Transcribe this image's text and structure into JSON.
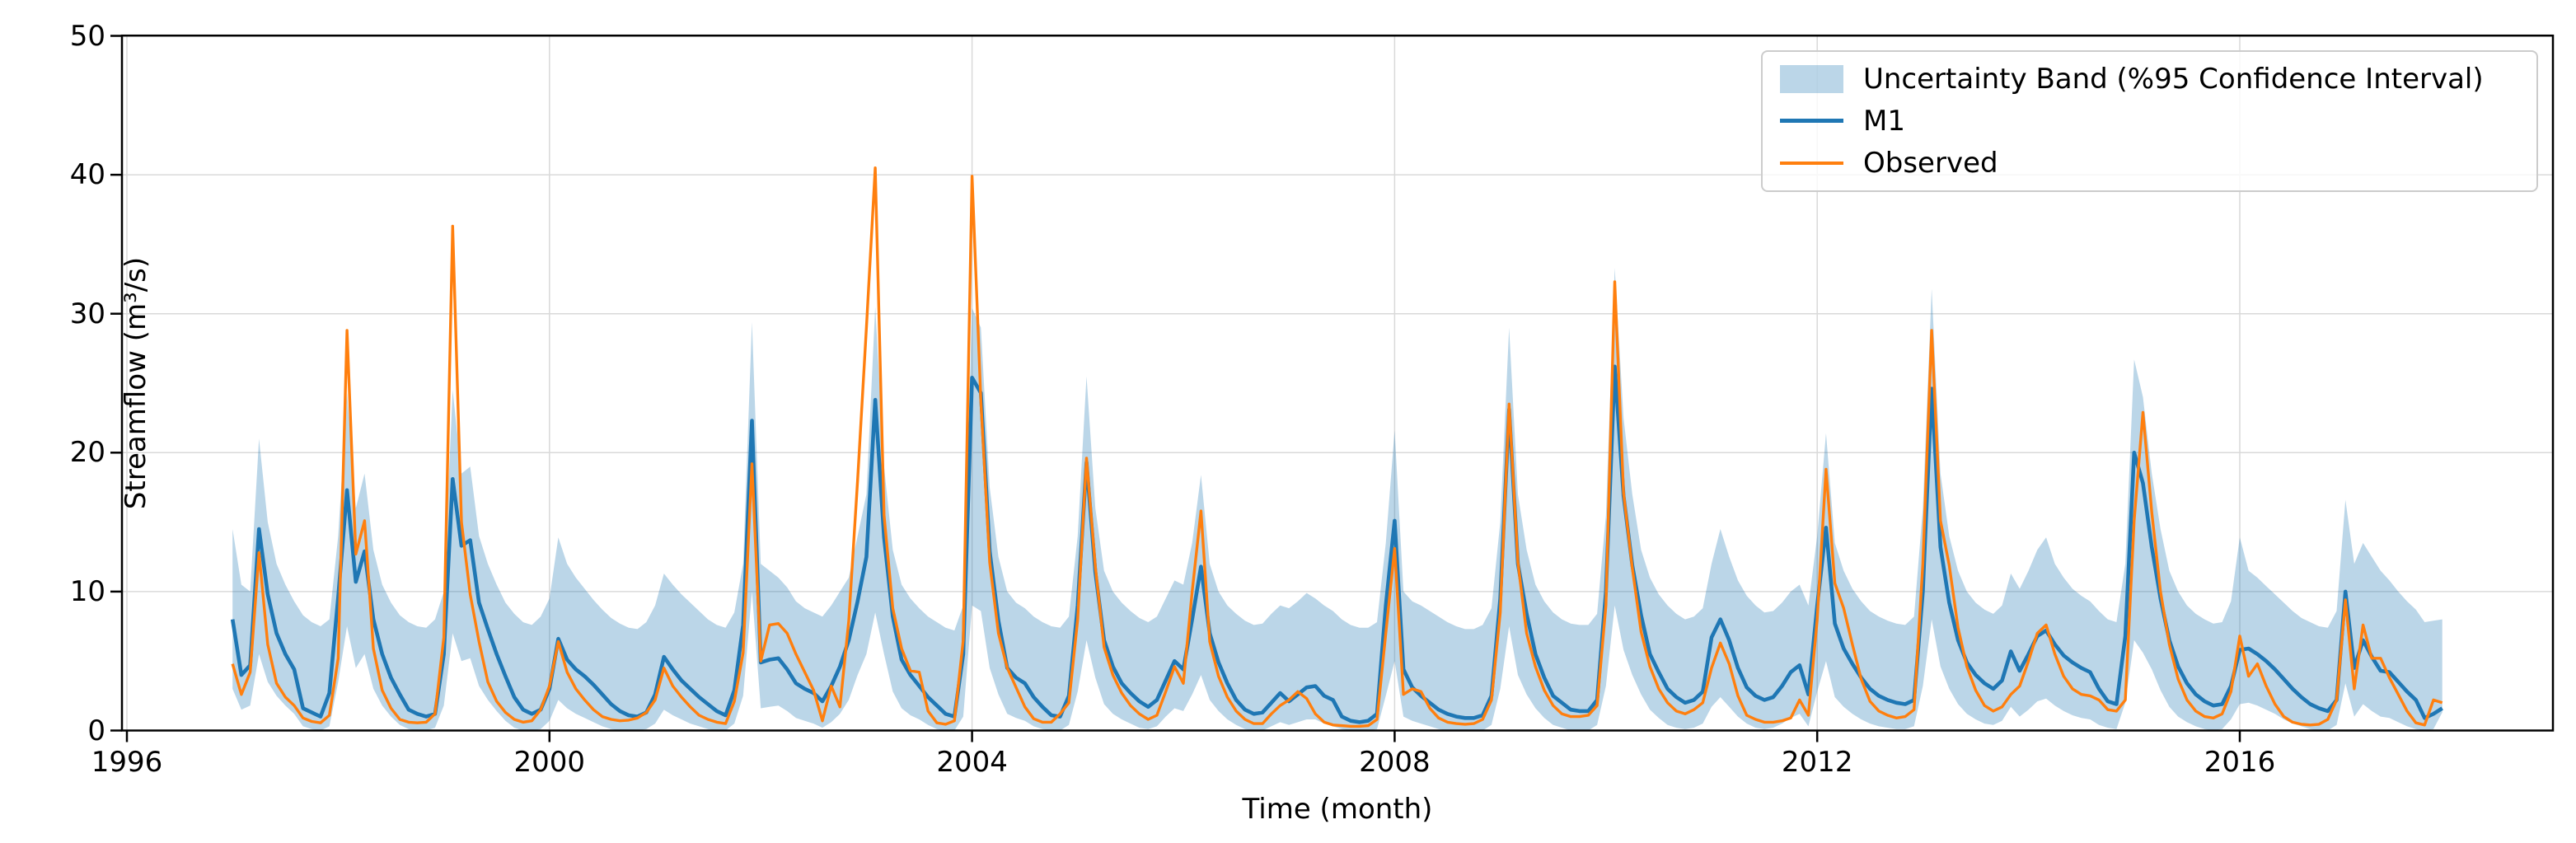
{
  "chart_data": {
    "type": "line",
    "title": "",
    "xlabel": "Time (month)",
    "ylabel": "Streamflow (m³/s)",
    "x_start": {
      "year": 1997,
      "month": 1
    },
    "x_step_months": 1,
    "n_points": 252,
    "xlim": [
      1995.95,
      2018.96
    ],
    "ylim": [
      0,
      50
    ],
    "xticks": [
      1996,
      2000,
      2004,
      2008,
      2012,
      2016
    ],
    "yticks": [
      0,
      10,
      20,
      30,
      40,
      50
    ],
    "grid": true,
    "legend_position": "upper right",
    "colors": {
      "m1": "#1f77b4",
      "observed": "#ff7f0e",
      "band": "#1f77b4",
      "band_opacity": 0.3
    },
    "series": [
      {
        "name": "Uncertainty Band (%95 Confidence Interval)",
        "type": "band",
        "upper": [
          14.5,
          10.5,
          10.0,
          21.0,
          15.0,
          12.0,
          10.5,
          9.3,
          8.3,
          7.8,
          7.5,
          8.0,
          14.0,
          24.3,
          16.0,
          18.5,
          13.0,
          10.5,
          9.2,
          8.3,
          7.8,
          7.5,
          7.4,
          8.0,
          10.0,
          24.5,
          18.5,
          19.0,
          14.0,
          12.0,
          10.5,
          9.2,
          8.4,
          7.8,
          7.6,
          8.2,
          9.5,
          13.9,
          12.0,
          11.0,
          10.2,
          9.4,
          8.7,
          8.1,
          7.7,
          7.4,
          7.3,
          7.8,
          9.0,
          11.3,
          10.5,
          9.8,
          9.2,
          8.6,
          8.0,
          7.6,
          7.4,
          8.5,
          12.0,
          29.4,
          12.0,
          11.5,
          11.0,
          10.3,
          9.3,
          8.8,
          8.5,
          8.2,
          9.0,
          10.0,
          11.0,
          14.0,
          17.0,
          30.5,
          19.0,
          13.0,
          10.5,
          9.5,
          8.8,
          8.2,
          7.8,
          7.4,
          7.2,
          9.0,
          30.4,
          29.0,
          17.5,
          12.5,
          10.0,
          9.2,
          8.8,
          8.2,
          7.8,
          7.5,
          7.4,
          8.2,
          14.0,
          25.5,
          16.0,
          11.5,
          10.0,
          9.2,
          8.6,
          8.1,
          7.8,
          8.2,
          9.5,
          10.8,
          10.5,
          13.5,
          18.4,
          12.0,
          10.0,
          9.0,
          8.4,
          7.9,
          7.6,
          7.7,
          8.4,
          9.0,
          8.8,
          9.3,
          9.9,
          9.5,
          9.0,
          8.6,
          8.0,
          7.6,
          7.4,
          7.4,
          7.8,
          13.5,
          21.6,
          10.0,
          9.3,
          9.0,
          8.6,
          8.2,
          7.8,
          7.5,
          7.3,
          7.3,
          7.6,
          8.8,
          15.0,
          29.0,
          17.0,
          13.0,
          10.5,
          9.3,
          8.5,
          8.0,
          7.7,
          7.6,
          7.6,
          8.4,
          15.5,
          33.3,
          22.5,
          17.0,
          13.0,
          11.0,
          9.8,
          9.0,
          8.4,
          8.0,
          8.2,
          8.8,
          12.0,
          14.5,
          12.5,
          10.8,
          9.7,
          9.0,
          8.5,
          8.6,
          9.2,
          10.0,
          10.5,
          9.0,
          14.0,
          21.4,
          13.5,
          11.5,
          10.2,
          9.3,
          8.6,
          8.2,
          7.9,
          7.7,
          7.6,
          8.2,
          16.0,
          31.8,
          18.5,
          14.0,
          11.5,
          10.0,
          9.2,
          8.7,
          8.4,
          9.0,
          11.3,
          10.2,
          11.5,
          13.0,
          13.9,
          12.0,
          11.0,
          10.2,
          9.7,
          9.3,
          8.6,
          8.0,
          7.8,
          12.0,
          26.7,
          24.0,
          18.5,
          14.5,
          11.5,
          10.0,
          9.0,
          8.4,
          8.0,
          7.7,
          7.8,
          9.3,
          13.9,
          11.5,
          11.0,
          10.4,
          9.8,
          9.2,
          8.6,
          8.1,
          7.8,
          7.5,
          7.4,
          8.6,
          16.6,
          12.0,
          13.5,
          12.5,
          11.5,
          10.8,
          10.0,
          9.3,
          8.7,
          7.8,
          7.9,
          8.0
        ],
        "lower": [
          3.0,
          1.5,
          1.8,
          5.5,
          3.5,
          2.5,
          1.8,
          1.2,
          0.3,
          0.1,
          0.0,
          0.3,
          3.5,
          7.5,
          4.5,
          5.5,
          3.0,
          1.8,
          1.0,
          0.4,
          0.1,
          0.0,
          0.0,
          0.2,
          1.8,
          7.0,
          5.0,
          5.2,
          3.2,
          2.2,
          1.4,
          0.7,
          0.2,
          0.0,
          0.0,
          0.1,
          0.7,
          2.2,
          1.6,
          1.2,
          0.9,
          0.6,
          0.3,
          0.1,
          0.0,
          0.0,
          0.0,
          0.1,
          0.5,
          1.5,
          1.1,
          0.8,
          0.5,
          0.3,
          0.1,
          0.0,
          0.0,
          0.5,
          2.5,
          10.0,
          1.6,
          1.7,
          1.8,
          1.4,
          0.9,
          0.7,
          0.5,
          0.2,
          0.6,
          1.2,
          2.2,
          4.0,
          5.5,
          8.5,
          5.5,
          2.8,
          1.6,
          1.1,
          0.8,
          0.4,
          0.1,
          0.0,
          0.0,
          1.0,
          9.0,
          8.6,
          4.5,
          2.6,
          1.2,
          0.9,
          0.7,
          0.3,
          0.1,
          0.0,
          0.0,
          0.4,
          2.8,
          6.5,
          3.8,
          1.9,
          1.2,
          0.8,
          0.5,
          0.2,
          0.1,
          0.3,
          1.0,
          1.6,
          1.4,
          2.6,
          4.0,
          2.2,
          1.4,
          0.8,
          0.4,
          0.1,
          0.0,
          0.0,
          0.3,
          0.6,
          0.4,
          0.6,
          0.8,
          0.8,
          0.5,
          0.3,
          0.1,
          0.0,
          0.0,
          0.0,
          0.1,
          2.5,
          5.0,
          1.0,
          0.7,
          0.5,
          0.3,
          0.1,
          0.0,
          0.0,
          0.0,
          0.0,
          0.0,
          0.4,
          3.0,
          7.5,
          4.0,
          2.6,
          1.6,
          0.9,
          0.4,
          0.2,
          0.0,
          0.0,
          0.0,
          0.4,
          3.2,
          9.0,
          5.8,
          4.0,
          2.6,
          1.5,
          0.9,
          0.4,
          0.2,
          0.1,
          0.2,
          0.5,
          1.7,
          2.4,
          1.7,
          1.0,
          0.5,
          0.2,
          0.1,
          0.2,
          0.5,
          0.9,
          1.2,
          0.3,
          2.8,
          5.0,
          2.4,
          1.7,
          1.2,
          0.8,
          0.5,
          0.3,
          0.2,
          0.1,
          0.1,
          0.3,
          3.2,
          8.0,
          4.6,
          3.0,
          1.9,
          1.2,
          0.8,
          0.5,
          0.4,
          0.7,
          1.7,
          1.0,
          1.5,
          2.1,
          2.3,
          1.8,
          1.4,
          1.1,
          0.9,
          0.8,
          0.4,
          0.2,
          0.1,
          2.0,
          6.5,
          5.6,
          4.4,
          2.9,
          1.7,
          1.0,
          0.6,
          0.3,
          0.1,
          0.0,
          0.1,
          0.8,
          1.9,
          2.0,
          1.8,
          1.5,
          1.2,
          0.8,
          0.5,
          0.3,
          0.1,
          0.0,
          0.0,
          0.4,
          3.4,
          1.0,
          1.9,
          1.4,
          1.0,
          0.9,
          0.6,
          0.3,
          0.1,
          0.0,
          0.1,
          1.3
        ]
      },
      {
        "name": "M1",
        "type": "line",
        "values": [
          8.0,
          4.0,
          4.7,
          14.5,
          9.8,
          7.0,
          5.5,
          4.4,
          1.6,
          1.3,
          1.0,
          2.7,
          9.6,
          17.3,
          10.7,
          12.9,
          8.0,
          5.5,
          3.8,
          2.6,
          1.5,
          1.2,
          1.0,
          1.2,
          5.5,
          18.1,
          13.3,
          13.7,
          9.2,
          7.3,
          5.5,
          3.9,
          2.4,
          1.5,
          1.2,
          1.5,
          3.0,
          6.6,
          5.1,
          4.4,
          3.9,
          3.3,
          2.6,
          1.9,
          1.4,
          1.1,
          1.0,
          1.3,
          2.6,
          5.3,
          4.4,
          3.6,
          3.0,
          2.4,
          1.9,
          1.4,
          1.1,
          2.9,
          7.6,
          22.3,
          4.9,
          5.1,
          5.2,
          4.4,
          3.4,
          3.0,
          2.7,
          2.1,
          3.2,
          4.6,
          6.5,
          9.3,
          12.5,
          23.8,
          13.9,
          8.2,
          5.1,
          4.0,
          3.2,
          2.4,
          1.8,
          1.2,
          1.0,
          5.5,
          25.4,
          24.3,
          12.9,
          7.9,
          4.5,
          3.8,
          3.4,
          2.4,
          1.7,
          1.1,
          1.0,
          2.5,
          9.0,
          19.3,
          11.4,
          6.5,
          4.6,
          3.4,
          2.7,
          2.1,
          1.7,
          2.2,
          3.6,
          5.0,
          4.4,
          8.0,
          11.8,
          7.0,
          4.9,
          3.4,
          2.2,
          1.5,
          1.2,
          1.3,
          2.0,
          2.7,
          2.1,
          2.6,
          3.1,
          3.2,
          2.5,
          2.2,
          1.0,
          0.7,
          0.6,
          0.7,
          1.2,
          9.0,
          15.1,
          4.4,
          3.1,
          2.5,
          2.0,
          1.5,
          1.2,
          1.0,
          0.9,
          0.9,
          1.1,
          2.5,
          9.5,
          23.1,
          12.0,
          8.4,
          5.5,
          3.8,
          2.5,
          2.0,
          1.5,
          1.4,
          1.4,
          2.2,
          10.0,
          26.2,
          16.9,
          11.9,
          8.3,
          5.5,
          4.2,
          3.0,
          2.4,
          2.0,
          2.2,
          2.8,
          6.7,
          8.0,
          6.5,
          4.5,
          3.1,
          2.5,
          2.2,
          2.4,
          3.2,
          4.2,
          4.7,
          2.6,
          9.0,
          14.6,
          7.7,
          5.9,
          4.8,
          3.8,
          3.0,
          2.5,
          2.2,
          2.0,
          1.9,
          2.2,
          10.0,
          24.6,
          13.2,
          9.2,
          6.5,
          4.9,
          4.0,
          3.4,
          3.0,
          3.6,
          5.7,
          4.3,
          5.5,
          6.8,
          7.2,
          6.2,
          5.4,
          4.9,
          4.5,
          4.2,
          3.0,
          2.1,
          1.9,
          6.8,
          20.0,
          17.8,
          13.2,
          9.5,
          6.5,
          4.6,
          3.4,
          2.6,
          2.1,
          1.8,
          1.9,
          3.2,
          5.8,
          5.9,
          5.5,
          5.0,
          4.4,
          3.7,
          3.0,
          2.4,
          1.9,
          1.6,
          1.4,
          2.2,
          10.0,
          4.5,
          6.5,
          5.3,
          4.3,
          4.2,
          3.5,
          2.8,
          2.2,
          0.9,
          1.2,
          1.6
        ]
      },
      {
        "name": "Observed",
        "type": "line",
        "values": [
          4.8,
          2.6,
          4.2,
          12.8,
          6.2,
          3.4,
          2.4,
          1.8,
          0.9,
          0.65,
          0.55,
          1.1,
          5.2,
          28.8,
          12.7,
          15.1,
          5.9,
          2.9,
          1.6,
          0.8,
          0.6,
          0.55,
          0.6,
          1.2,
          6.7,
          36.3,
          15.0,
          9.8,
          6.4,
          3.5,
          2.1,
          1.3,
          0.8,
          0.6,
          0.7,
          1.5,
          3.2,
          6.4,
          4.2,
          3.0,
          2.2,
          1.5,
          1.0,
          0.8,
          0.7,
          0.75,
          0.9,
          1.3,
          2.2,
          4.5,
          3.2,
          2.4,
          1.7,
          1.1,
          0.8,
          0.6,
          0.5,
          2.1,
          5.6,
          19.2,
          5.0,
          7.6,
          7.7,
          7.0,
          5.5,
          4.2,
          2.9,
          0.7,
          3.2,
          1.7,
          7.9,
          18.0,
          29.0,
          40.5,
          15.5,
          8.8,
          5.9,
          4.3,
          4.2,
          1.4,
          0.55,
          0.45,
          0.7,
          6.5,
          39.9,
          23.7,
          12.1,
          7.0,
          4.5,
          3.1,
          1.7,
          0.85,
          0.6,
          0.6,
          1.2,
          2.0,
          8.0,
          19.6,
          11.8,
          6.0,
          4.0,
          2.7,
          1.8,
          1.2,
          0.8,
          1.1,
          2.8,
          4.6,
          3.4,
          10.0,
          15.8,
          6.4,
          3.9,
          2.4,
          1.4,
          0.8,
          0.5,
          0.5,
          1.2,
          1.8,
          2.2,
          2.8,
          2.3,
          1.2,
          0.6,
          0.4,
          0.35,
          0.3,
          0.3,
          0.35,
          0.8,
          7.0,
          13.1,
          2.6,
          3.0,
          2.8,
          1.6,
          0.9,
          0.6,
          0.5,
          0.45,
          0.5,
          0.8,
          2.2,
          8.5,
          23.5,
          12.1,
          7.0,
          4.6,
          2.9,
          1.8,
          1.2,
          1.0,
          1.0,
          1.1,
          1.8,
          9.0,
          32.3,
          17.1,
          11.7,
          7.1,
          4.6,
          3.0,
          2.0,
          1.4,
          1.2,
          1.5,
          2.0,
          4.5,
          6.3,
          4.8,
          2.5,
          1.1,
          0.8,
          0.6,
          0.6,
          0.7,
          0.9,
          2.2,
          1.1,
          8.0,
          18.8,
          10.6,
          8.8,
          6.2,
          3.7,
          2.1,
          1.4,
          1.1,
          0.9,
          1.0,
          1.5,
          12.0,
          28.8,
          15.1,
          11.9,
          7.4,
          4.6,
          2.9,
          1.8,
          1.4,
          1.7,
          2.6,
          3.2,
          5.0,
          7.0,
          7.6,
          5.5,
          3.9,
          3.0,
          2.6,
          2.5,
          2.2,
          1.5,
          1.4,
          2.2,
          15.1,
          22.9,
          15.7,
          10.0,
          6.2,
          3.7,
          2.2,
          1.4,
          1.0,
          0.9,
          1.2,
          2.8,
          6.8,
          3.9,
          4.8,
          3.2,
          1.9,
          1.0,
          0.6,
          0.45,
          0.4,
          0.45,
          0.8,
          2.2,
          9.4,
          3.0,
          7.6,
          5.2,
          5.2,
          3.8,
          2.6,
          1.4,
          0.55,
          0.4,
          2.2,
          2.0
        ]
      }
    ]
  }
}
